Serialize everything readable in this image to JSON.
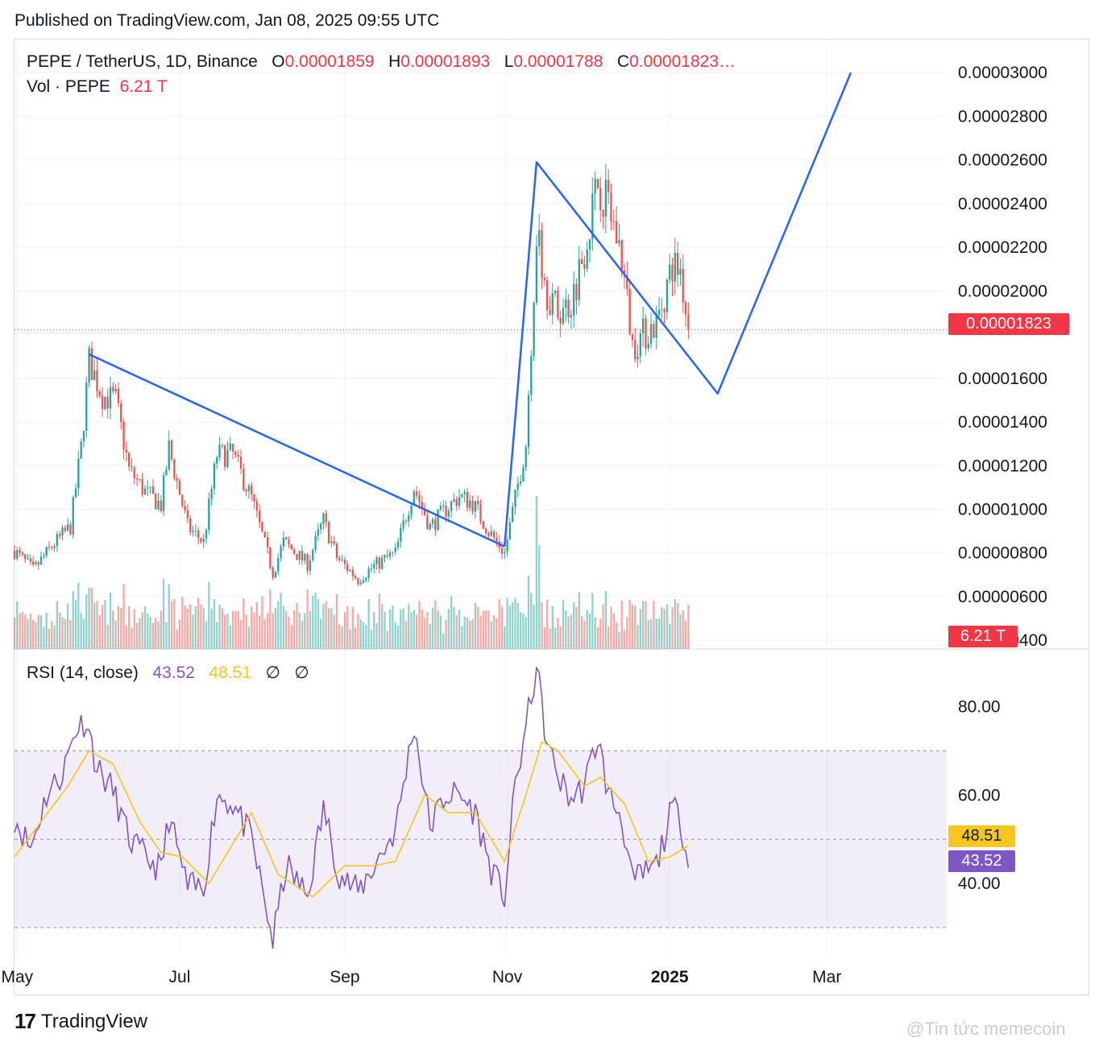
{
  "published": "Published on TradingView.com, Jan 08, 2025 09:55 UTC",
  "legend": {
    "symbol": "PEPE / TetherUS, 1D, Binance",
    "o_label": "O",
    "o_value": "0.00001859",
    "h_label": "H",
    "h_value": "0.00001893",
    "l_label": "L",
    "l_value": "0.00001788",
    "c_label": "C",
    "c_value": "0.00001823…"
  },
  "volume": {
    "label": "Vol · PEPE",
    "value": "6.21 T"
  },
  "rsi": {
    "label": "RSI (14, close)",
    "value": "43.52",
    "ma_value": "48.51",
    "sym1": "∅",
    "sym2": "∅"
  },
  "price_tags": {
    "last_price": "0.00001823",
    "last_volume": "6.21 T",
    "rsi_ma": "48.51",
    "rsi": "43.52"
  },
  "colors": {
    "up": "#26a69a",
    "down": "#ef5350",
    "drawing": "#2962ff",
    "rsi": "#7e57c2",
    "rsi_ma": "#f7c61f",
    "tag_red": "#f23645"
  },
  "footer": {
    "brand": "TradingView",
    "watermark": "@Tin tức memecoin"
  },
  "chart_data": [
    {
      "type": "candlestick",
      "title": "PEPE / TetherUS, 1D, Binance",
      "x_tick_labels": [
        "May",
        "Jul",
        "Sep",
        "Nov",
        "2025",
        "Mar"
      ],
      "x_ticks": [
        "2024-05-01",
        "2024-07-01",
        "2024-09-01",
        "2024-11-01",
        "2025-01-01",
        "2025-03-01"
      ],
      "x_range": [
        "2024-04-30",
        "2025-04-15"
      ],
      "y_tick_labels": [
        "0.00003000",
        "0.00002800",
        "0.00002600",
        "0.00002400",
        "0.00002200",
        "0.00002000",
        "0.00001600",
        "0.00001400",
        "0.00001200",
        "0.00001000",
        "0.00000800",
        "0.00000600",
        "0.00000400"
      ],
      "y_ticks": [
        3e-05,
        2.8e-05,
        2.6e-05,
        2.4e-05,
        2.2e-05,
        2e-05,
        1.6e-05,
        1.4e-05,
        1.2e-05,
        1e-05,
        8e-06,
        6e-06,
        4e-06
      ],
      "ylim": [
        3.6e-06,
        3.13e-05
      ],
      "last_price": 1.823e-05,
      "anchors": [
        {
          "date": "2024-04-30",
          "price": 8.1e-06
        },
        {
          "date": "2024-05-07",
          "price": 7.2e-06
        },
        {
          "date": "2024-05-14",
          "price": 8.3e-06
        },
        {
          "date": "2024-05-21",
          "price": 9.2e-06
        },
        {
          "date": "2024-05-25",
          "price": 1.28e-05
        },
        {
          "date": "2024-05-28",
          "price": 1.68e-05
        },
        {
          "date": "2024-06-02",
          "price": 1.52e-05
        },
        {
          "date": "2024-06-07",
          "price": 1.5e-05
        },
        {
          "date": "2024-06-12",
          "price": 1.18e-05
        },
        {
          "date": "2024-06-18",
          "price": 1.08e-05
        },
        {
          "date": "2024-06-24",
          "price": 1.02e-05
        },
        {
          "date": "2024-06-27",
          "price": 1.28e-05
        },
        {
          "date": "2024-07-04",
          "price": 9.2e-06
        },
        {
          "date": "2024-07-10",
          "price": 8.5e-06
        },
        {
          "date": "2024-07-15",
          "price": 1.25e-05
        },
        {
          "date": "2024-07-21",
          "price": 1.25e-05
        },
        {
          "date": "2024-07-28",
          "price": 1.05e-05
        },
        {
          "date": "2024-08-05",
          "price": 7.1e-06
        },
        {
          "date": "2024-08-09",
          "price": 8.5e-06
        },
        {
          "date": "2024-08-18",
          "price": 7.5e-06
        },
        {
          "date": "2024-08-24",
          "price": 9.5e-06
        },
        {
          "date": "2024-08-29",
          "price": 7.8e-06
        },
        {
          "date": "2024-09-06",
          "price": 6.8e-06
        },
        {
          "date": "2024-09-12",
          "price": 7.4e-06
        },
        {
          "date": "2024-09-20",
          "price": 8e-06
        },
        {
          "date": "2024-09-27",
          "price": 1.1e-05
        },
        {
          "date": "2024-10-03",
          "price": 9.2e-06
        },
        {
          "date": "2024-10-09",
          "price": 1e-05
        },
        {
          "date": "2024-10-14",
          "price": 1.06e-05
        },
        {
          "date": "2024-10-19",
          "price": 1.03e-05
        },
        {
          "date": "2024-10-25",
          "price": 9e-06
        },
        {
          "date": "2024-10-31",
          "price": 8e-06
        },
        {
          "date": "2024-11-04",
          "price": 1.05e-05
        },
        {
          "date": "2024-11-08",
          "price": 1.3e-05
        },
        {
          "date": "2024-11-12",
          "price": 2.25e-05
        },
        {
          "date": "2024-11-16",
          "price": 2e-05
        },
        {
          "date": "2024-11-20",
          "price": 1.9e-05
        },
        {
          "date": "2024-11-25",
          "price": 1.95e-05
        },
        {
          "date": "2024-11-30",
          "price": 2.2e-05
        },
        {
          "date": "2024-12-05",
          "price": 2.5e-05
        },
        {
          "date": "2024-12-09",
          "price": 2.4e-05
        },
        {
          "date": "2024-12-14",
          "price": 2.15e-05
        },
        {
          "date": "2024-12-18",
          "price": 1.75e-05
        },
        {
          "date": "2024-12-22",
          "price": 1.8e-05
        },
        {
          "date": "2024-12-27",
          "price": 1.85e-05
        },
        {
          "date": "2025-01-02",
          "price": 2.12e-05
        },
        {
          "date": "2025-01-05",
          "price": 2.1e-05
        },
        {
          "date": "2025-01-08",
          "price": 1.82e-05
        }
      ],
      "trend_lines": [
        {
          "points": [
            {
              "date": "2024-05-28",
              "price": 1.71e-05
            },
            {
              "date": "2024-10-31",
              "price": 8.3e-06
            }
          ]
        },
        {
          "points": [
            {
              "date": "2024-10-31",
              "price": 8.3e-06
            },
            {
              "date": "2024-11-12",
              "price": 2.59e-05
            },
            {
              "date": "2025-01-19",
              "price": 1.53e-05
            },
            {
              "date": "2025-03-10",
              "price": 3e-05
            }
          ]
        }
      ]
    },
    {
      "type": "bar",
      "title": "Vol · PEPE",
      "last_value": "6.21 T",
      "notable_spikes": [
        {
          "date": "2024-11-12",
          "relative": 1.0
        },
        {
          "date": "2024-11-13",
          "relative": 0.68
        },
        {
          "date": "2024-12-08",
          "relative": 0.38
        }
      ]
    },
    {
      "type": "line",
      "title": "RSI (14, close)",
      "y_tick_labels": [
        "80.00",
        "60.00",
        "40.00"
      ],
      "y_ticks": [
        80,
        60,
        40
      ],
      "ylim": [
        24,
        93
      ],
      "bands": [
        70,
        50,
        30
      ],
      "series": [
        {
          "name": "RSI",
          "last_value": 43.52,
          "anchors": [
            {
              "date": "2024-04-30",
              "value": 55
            },
            {
              "date": "2024-05-06",
              "value": 48
            },
            {
              "date": "2024-05-12",
              "value": 60
            },
            {
              "date": "2024-05-18",
              "value": 65
            },
            {
              "date": "2024-05-23",
              "value": 75
            },
            {
              "date": "2024-05-27",
              "value": 77
            },
            {
              "date": "2024-05-31",
              "value": 66
            },
            {
              "date": "2024-06-06",
              "value": 61
            },
            {
              "date": "2024-06-12",
              "value": 50
            },
            {
              "date": "2024-06-18",
              "value": 46
            },
            {
              "date": "2024-06-24",
              "value": 43
            },
            {
              "date": "2024-06-27",
              "value": 55
            },
            {
              "date": "2024-07-04",
              "value": 39
            },
            {
              "date": "2024-07-10",
              "value": 39
            },
            {
              "date": "2024-07-15",
              "value": 60
            },
            {
              "date": "2024-07-21",
              "value": 58
            },
            {
              "date": "2024-07-28",
              "value": 50
            },
            {
              "date": "2024-08-05",
              "value": 27
            },
            {
              "date": "2024-08-10",
              "value": 44
            },
            {
              "date": "2024-08-18",
              "value": 37
            },
            {
              "date": "2024-08-24",
              "value": 57
            },
            {
              "date": "2024-08-30",
              "value": 42
            },
            {
              "date": "2024-09-06",
              "value": 38
            },
            {
              "date": "2024-09-13",
              "value": 45
            },
            {
              "date": "2024-09-20",
              "value": 52
            },
            {
              "date": "2024-09-27",
              "value": 76
            },
            {
              "date": "2024-10-03",
              "value": 53
            },
            {
              "date": "2024-10-09",
              "value": 60
            },
            {
              "date": "2024-10-14",
              "value": 60
            },
            {
              "date": "2024-10-20",
              "value": 56
            },
            {
              "date": "2024-10-26",
              "value": 43
            },
            {
              "date": "2024-10-31",
              "value": 37
            },
            {
              "date": "2024-11-04",
              "value": 62
            },
            {
              "date": "2024-11-08",
              "value": 75
            },
            {
              "date": "2024-11-12",
              "value": 89
            },
            {
              "date": "2024-11-16",
              "value": 71
            },
            {
              "date": "2024-11-21",
              "value": 63
            },
            {
              "date": "2024-11-25",
              "value": 59
            },
            {
              "date": "2024-11-30",
              "value": 62
            },
            {
              "date": "2024-12-05",
              "value": 73
            },
            {
              "date": "2024-12-09",
              "value": 60
            },
            {
              "date": "2024-12-14",
              "value": 55
            },
            {
              "date": "2024-12-18",
              "value": 40
            },
            {
              "date": "2024-12-22",
              "value": 42
            },
            {
              "date": "2024-12-27",
              "value": 44
            },
            {
              "date": "2025-01-02",
              "value": 57
            },
            {
              "date": "2025-01-05",
              "value": 55
            },
            {
              "date": "2025-01-08",
              "value": 43.5
            }
          ]
        },
        {
          "name": "RSI-based MA",
          "last_value": 48.51,
          "anchors": [
            {
              "date": "2024-04-30",
              "value": 46
            },
            {
              "date": "2024-05-10",
              "value": 54
            },
            {
              "date": "2024-05-20",
              "value": 62
            },
            {
              "date": "2024-05-28",
              "value": 70
            },
            {
              "date": "2024-06-06",
              "value": 67
            },
            {
              "date": "2024-06-16",
              "value": 54
            },
            {
              "date": "2024-06-24",
              "value": 47
            },
            {
              "date": "2024-07-02",
              "value": 46
            },
            {
              "date": "2024-07-12",
              "value": 40
            },
            {
              "date": "2024-07-22",
              "value": 50
            },
            {
              "date": "2024-07-28",
              "value": 56
            },
            {
              "date": "2024-08-07",
              "value": 42
            },
            {
              "date": "2024-08-20",
              "value": 37
            },
            {
              "date": "2024-09-01",
              "value": 44
            },
            {
              "date": "2024-09-12",
              "value": 44
            },
            {
              "date": "2024-09-20",
              "value": 45
            },
            {
              "date": "2024-10-01",
              "value": 60
            },
            {
              "date": "2024-10-10",
              "value": 56
            },
            {
              "date": "2024-10-20",
              "value": 56
            },
            {
              "date": "2024-10-31",
              "value": 45
            },
            {
              "date": "2024-11-08",
              "value": 60
            },
            {
              "date": "2024-11-14",
              "value": 72
            },
            {
              "date": "2024-11-20",
              "value": 70
            },
            {
              "date": "2024-11-30",
              "value": 62
            },
            {
              "date": "2024-12-06",
              "value": 64
            },
            {
              "date": "2024-12-15",
              "value": 58
            },
            {
              "date": "2024-12-24",
              "value": 45
            },
            {
              "date": "2025-01-01",
              "value": 46
            },
            {
              "date": "2025-01-08",
              "value": 48.5
            }
          ]
        }
      ]
    }
  ]
}
